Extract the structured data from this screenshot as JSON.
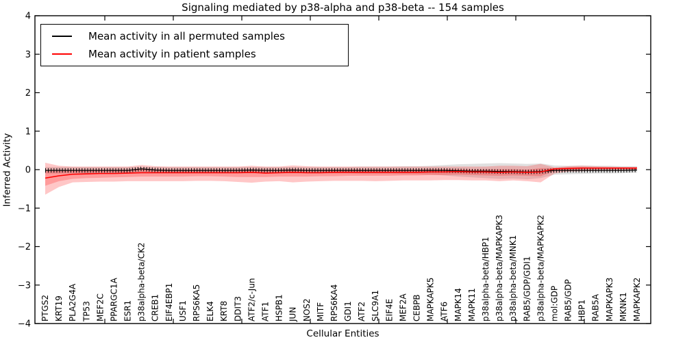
{
  "chart_data": {
    "type": "line",
    "title": "Signaling mediated by p38-alpha and p38-beta -- 154 samples",
    "xlabel": "Cellular Entities",
    "ylabel": "Inferred Activity",
    "ylim": [
      -4,
      4
    ],
    "y_ticks": [
      4,
      3,
      2,
      1,
      0,
      -1,
      -2,
      -3,
      -4
    ],
    "grid": false,
    "legend_position": "upper left",
    "legend": [
      "Mean activity in all permuted samples",
      "Mean activity in patient samples"
    ],
    "colors": {
      "permuted_line": "#000000",
      "patient_line": "#ff0000",
      "patient_band": "rgba(255,0,0,0.22)",
      "permuted_band": "rgba(0,0,0,0.12)"
    },
    "categories": [
      "PTGS2",
      "KRT19",
      "PLA2G4A",
      "TP53",
      "MEF2C",
      "PPARGC1A",
      "ESR1",
      "p38alpha-beta/CK2",
      "CREB1",
      "EIF4EBP1",
      "USF1",
      "RPS6KA5",
      "ELK4",
      "KRT8",
      "DDIT3",
      "ATF2/c-Jun",
      "ATF1",
      "HSPB1",
      "JUN",
      "NOS2",
      "MITF",
      "RPS6KA4",
      "GDI1",
      "ATF2",
      "SLC9A1",
      "EIF4E",
      "MEF2A",
      "CEBPB",
      "MAPKAPK5",
      "ATF6",
      "MAPK14",
      "MAPK11",
      "p38alpha-beta/HBP1",
      "p38alpha-beta/MAPKAPK3",
      "p38alpha-beta/MNK1",
      "RAB5/GDP/GDI1",
      "p38alpha-beta/MAPKAPK2",
      "mol:GDP",
      "RAB5/GDP",
      "HBP1",
      "RAB5A",
      "MAPKAPK3",
      "MKNK1",
      "MAPKAPK2"
    ],
    "series": [
      {
        "name": "Mean activity in all permuted samples",
        "values": [
          -0.02,
          -0.02,
          -0.02,
          -0.02,
          -0.02,
          -0.02,
          -0.02,
          0.02,
          -0.01,
          -0.02,
          -0.02,
          -0.02,
          -0.02,
          -0.02,
          -0.02,
          -0.01,
          -0.02,
          -0.02,
          -0.01,
          -0.02,
          -0.02,
          -0.02,
          -0.02,
          -0.02,
          -0.02,
          -0.02,
          -0.02,
          -0.02,
          -0.02,
          -0.02,
          -0.03,
          -0.04,
          -0.04,
          -0.05,
          -0.05,
          -0.06,
          -0.05,
          -0.02,
          -0.02,
          -0.02,
          -0.02,
          -0.02,
          -0.02,
          -0.01
        ]
      },
      {
        "name": "Mean activity in patient samples",
        "values": [
          -0.22,
          -0.16,
          -0.12,
          -0.11,
          -0.1,
          -0.1,
          -0.09,
          -0.08,
          -0.08,
          -0.08,
          -0.08,
          -0.08,
          -0.08,
          -0.08,
          -0.08,
          -0.07,
          -0.09,
          -0.08,
          -0.07,
          -0.08,
          -0.08,
          -0.07,
          -0.07,
          -0.07,
          -0.07,
          -0.07,
          -0.07,
          -0.07,
          -0.06,
          -0.06,
          -0.05,
          -0.06,
          -0.06,
          -0.07,
          -0.06,
          -0.07,
          -0.06,
          0.02,
          0.03,
          0.04,
          0.04,
          0.04,
          0.04,
          0.04
        ]
      }
    ],
    "bands": {
      "patient_outer_hi": [
        0.18,
        0.1,
        0.08,
        0.08,
        0.08,
        0.08,
        0.08,
        0.12,
        0.09,
        0.08,
        0.08,
        0.08,
        0.08,
        0.08,
        0.08,
        0.1,
        0.08,
        0.08,
        0.11,
        0.09,
        0.08,
        0.08,
        0.08,
        0.08,
        0.08,
        0.08,
        0.08,
        0.08,
        0.08,
        0.08,
        0.08,
        0.08,
        0.08,
        0.1,
        0.1,
        0.09,
        0.15,
        0.06,
        0.09,
        0.1,
        0.09,
        0.08,
        0.07,
        0.07
      ],
      "patient_outer_lo": [
        -0.65,
        -0.45,
        -0.33,
        -0.32,
        -0.31,
        -0.31,
        -0.3,
        -0.3,
        -0.3,
        -0.3,
        -0.3,
        -0.29,
        -0.29,
        -0.3,
        -0.32,
        -0.34,
        -0.31,
        -0.3,
        -0.33,
        -0.31,
        -0.3,
        -0.29,
        -0.29,
        -0.29,
        -0.3,
        -0.29,
        -0.28,
        -0.28,
        -0.28,
        -0.27,
        -0.27,
        -0.28,
        -0.28,
        -0.3,
        -0.28,
        -0.3,
        -0.33,
        -0.1,
        -0.05,
        -0.04,
        -0.03,
        -0.02,
        -0.02,
        -0.02
      ],
      "patient_inner_hi": [
        -0.03,
        -0.03,
        -0.02,
        -0.02,
        -0.02,
        -0.02,
        -0.01,
        0.02,
        0.0,
        -0.01,
        -0.01,
        -0.01,
        -0.01,
        -0.01,
        -0.01,
        0.0,
        -0.01,
        -0.01,
        0.01,
        -0.01,
        -0.01,
        0.0,
        0.0,
        0.0,
        0.0,
        0.0,
        0.0,
        0.0,
        0.01,
        0.01,
        0.01,
        0.0,
        0.0,
        0.01,
        0.01,
        0.0,
        0.04,
        0.04,
        0.06,
        0.07,
        0.06,
        0.06,
        0.06,
        0.06
      ],
      "patient_inner_lo": [
        -0.42,
        -0.3,
        -0.24,
        -0.22,
        -0.21,
        -0.2,
        -0.19,
        -0.18,
        -0.18,
        -0.18,
        -0.18,
        -0.17,
        -0.17,
        -0.18,
        -0.19,
        -0.19,
        -0.19,
        -0.18,
        -0.18,
        -0.18,
        -0.17,
        -0.17,
        -0.16,
        -0.16,
        -0.16,
        -0.16,
        -0.15,
        -0.15,
        -0.14,
        -0.14,
        -0.13,
        -0.14,
        -0.15,
        -0.16,
        -0.15,
        -0.16,
        -0.17,
        -0.04,
        -0.01,
        0.0,
        0.01,
        0.01,
        0.01,
        0.01
      ],
      "permuted_hi": [
        0.07,
        0.07,
        0.07,
        0.07,
        0.07,
        0.07,
        0.07,
        0.07,
        0.07,
        0.07,
        0.07,
        0.07,
        0.07,
        0.07,
        0.07,
        0.07,
        0.07,
        0.07,
        0.07,
        0.07,
        0.07,
        0.07,
        0.07,
        0.08,
        0.08,
        0.08,
        0.09,
        0.09,
        0.1,
        0.12,
        0.14,
        0.15,
        0.16,
        0.17,
        0.16,
        0.15,
        0.16,
        0.11,
        0.1,
        0.11,
        0.1,
        0.1,
        0.09,
        0.09
      ],
      "permuted_lo": [
        -0.1,
        -0.1,
        -0.1,
        -0.1,
        -0.1,
        -0.1,
        -0.1,
        -0.1,
        -0.1,
        -0.1,
        -0.1,
        -0.1,
        -0.1,
        -0.1,
        -0.1,
        -0.1,
        -0.1,
        -0.1,
        -0.1,
        -0.1,
        -0.1,
        -0.1,
        -0.1,
        -0.11,
        -0.11,
        -0.11,
        -0.12,
        -0.12,
        -0.13,
        -0.15,
        -0.18,
        -0.2,
        -0.22,
        -0.24,
        -0.23,
        -0.25,
        -0.22,
        -0.13,
        -0.12,
        -0.11,
        -0.1,
        -0.1,
        -0.09,
        -0.08
      ]
    }
  }
}
